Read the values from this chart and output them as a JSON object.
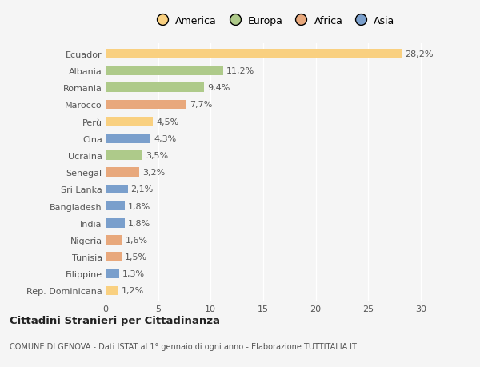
{
  "countries": [
    "Ecuador",
    "Albania",
    "Romania",
    "Marocco",
    "Perù",
    "Cina",
    "Ucraina",
    "Senegal",
    "Sri Lanka",
    "Bangladesh",
    "India",
    "Nigeria",
    "Tunisia",
    "Filippine",
    "Rep. Dominicana"
  ],
  "values": [
    28.2,
    11.2,
    9.4,
    7.7,
    4.5,
    4.3,
    3.5,
    3.2,
    2.1,
    1.8,
    1.8,
    1.6,
    1.5,
    1.3,
    1.2
  ],
  "labels": [
    "28,2%",
    "11,2%",
    "9,4%",
    "7,7%",
    "4,5%",
    "4,3%",
    "3,5%",
    "3,2%",
    "2,1%",
    "1,8%",
    "1,8%",
    "1,6%",
    "1,5%",
    "1,3%",
    "1,2%"
  ],
  "colors": [
    "#F9D080",
    "#AECA8A",
    "#AECA8A",
    "#E8A87C",
    "#F9D080",
    "#7A9FCC",
    "#AECA8A",
    "#E8A87C",
    "#7A9FCC",
    "#7A9FCC",
    "#7A9FCC",
    "#E8A87C",
    "#E8A87C",
    "#7A9FCC",
    "#F9D080"
  ],
  "legend_labels": [
    "America",
    "Europa",
    "Africa",
    "Asia"
  ],
  "legend_colors": [
    "#F9D080",
    "#AECA8A",
    "#E8A87C",
    "#7A9FCC"
  ],
  "title": "Cittadini Stranieri per Cittadinanza",
  "subtitle": "COMUNE DI GENOVA - Dati ISTAT al 1° gennaio di ogni anno - Elaborazione TUTTITALIA.IT",
  "xlim": [
    0,
    32
  ],
  "xticks": [
    0,
    5,
    10,
    15,
    20,
    25,
    30
  ],
  "background_color": "#f5f5f5",
  "bar_height": 0.55,
  "grid_color": "#ffffff",
  "label_fontsize": 8,
  "ytick_fontsize": 8,
  "xtick_fontsize": 8
}
